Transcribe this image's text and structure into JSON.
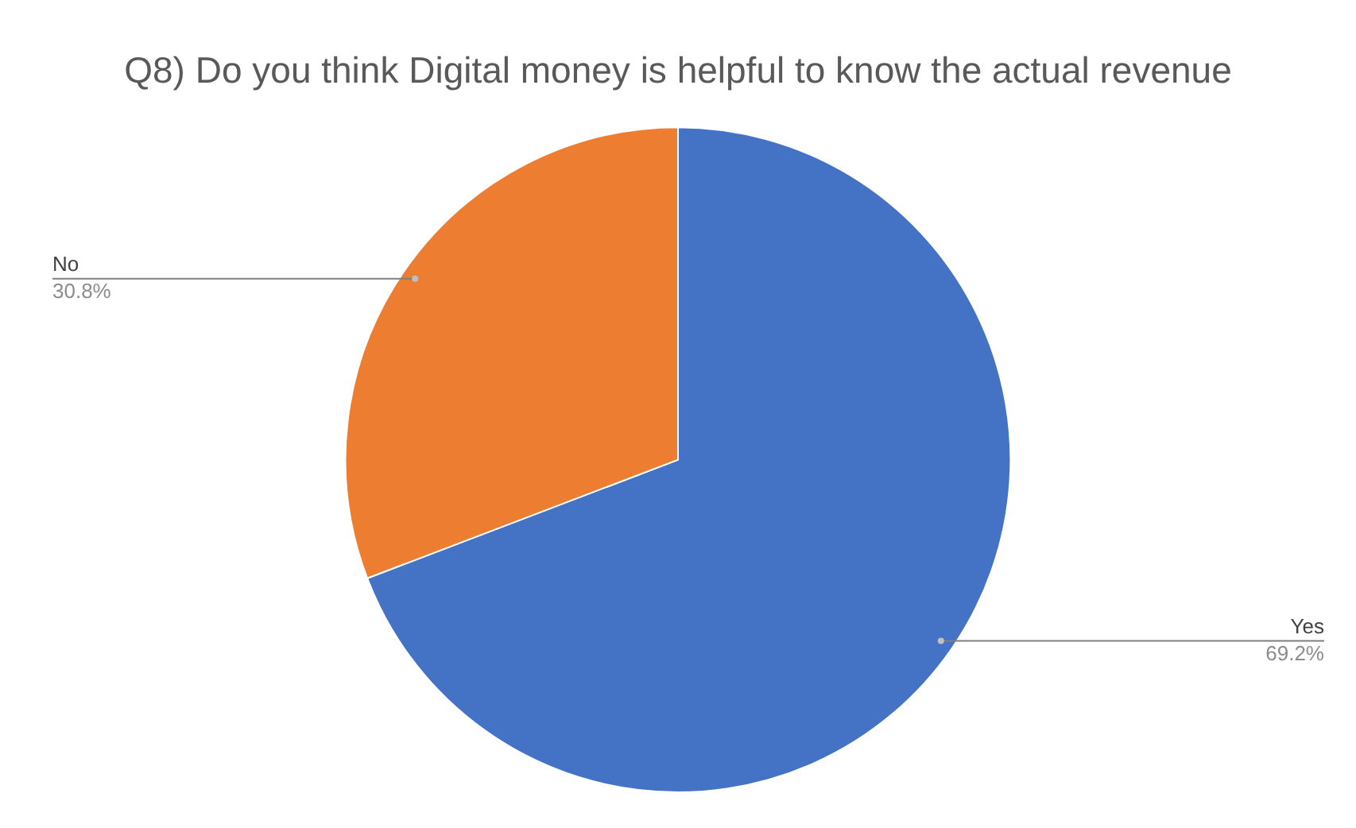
{
  "chart_data": {
    "type": "pie",
    "title": "Q8) Do you think Digital money is helpful to know the actual revenue",
    "categories": [
      "Yes",
      "No"
    ],
    "values": [
      69.2,
      30.8
    ],
    "value_labels": [
      "69.2%",
      "30.8%"
    ],
    "colors": [
      "#4472c4",
      "#ed7d31"
    ],
    "legend": false
  }
}
